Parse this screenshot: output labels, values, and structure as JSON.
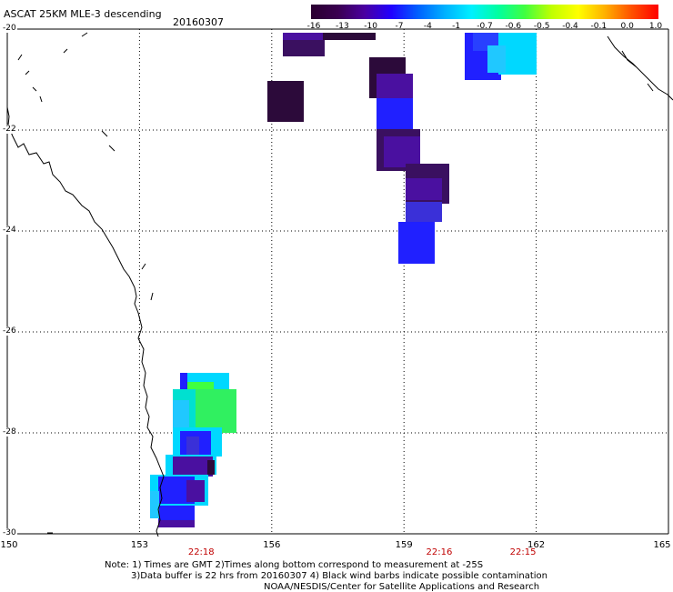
{
  "header": {
    "title": "ASCAT 25KM MLE-3 descending",
    "date": "20160307"
  },
  "colorbar": {
    "labels": [
      "-16",
      "-13",
      "-10",
      "-7",
      "-4",
      "-1",
      "-0.7",
      "-0.6",
      "-0.5",
      "-0.4",
      "-0.1",
      "0.0",
      "1.0"
    ]
  },
  "map": {
    "lat_labels": [
      "-20",
      "-22",
      "-24",
      "-26",
      "-28",
      "-30"
    ],
    "lon_labels": [
      "150",
      "153",
      "156",
      "159",
      "162",
      "165"
    ],
    "pass_times": [
      {
        "label": "22:18",
        "lon": 154.4
      },
      {
        "label": "22:16",
        "lon": 159.8
      },
      {
        "label": "22:15",
        "lon": 161.7
      }
    ]
  },
  "notes": {
    "line1": "Note: 1) Times are GMT 2)Times along bottom correspond to measurement at -25S",
    "line2": "3)Data buffer is 22 hrs from 20160307 4) Black wind barbs indicate possible contamination",
    "line3": "NOAA/NESDIS/Center for Satellite Applications and Research"
  }
}
